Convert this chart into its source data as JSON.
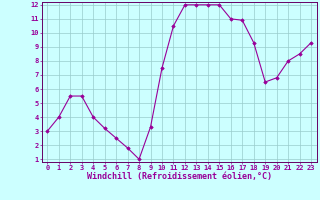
{
  "x": [
    0,
    1,
    2,
    3,
    4,
    5,
    6,
    7,
    8,
    9,
    10,
    11,
    12,
    13,
    14,
    15,
    16,
    17,
    18,
    19,
    20,
    21,
    22,
    23
  ],
  "y": [
    3,
    4,
    5.5,
    5.5,
    4,
    3.2,
    2.5,
    1.8,
    1,
    3.3,
    7.5,
    10.5,
    12,
    12,
    12,
    12,
    11,
    10.9,
    9.3,
    6.5,
    6.8,
    8,
    8.5,
    9.3
  ],
  "line_color": "#990099",
  "marker": "D",
  "markersize": 1.8,
  "linewidth": 0.8,
  "bg_color": "#ccffff",
  "grid_color": "#99cccc",
  "xlabel": "Windchill (Refroidissement éolien,°C)",
  "xlabel_color": "#990099",
  "tick_color": "#990099",
  "ylim": [
    1,
    12
  ],
  "xlim": [
    -0.5,
    23.5
  ],
  "yticks": [
    1,
    2,
    3,
    4,
    5,
    6,
    7,
    8,
    9,
    10,
    11,
    12
  ],
  "xticks": [
    0,
    1,
    2,
    3,
    4,
    5,
    6,
    7,
    8,
    9,
    10,
    11,
    12,
    13,
    14,
    15,
    16,
    17,
    18,
    19,
    20,
    21,
    22,
    23
  ],
  "tick_fontsize": 5.0,
  "xlabel_fontsize": 6.0,
  "spine_color": "#660066"
}
